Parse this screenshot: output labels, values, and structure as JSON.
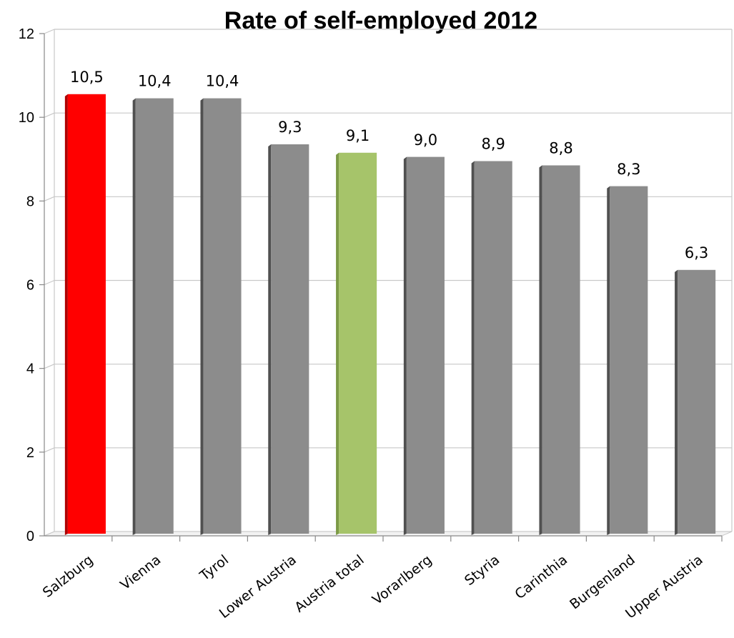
{
  "chart_data": {
    "type": "bar",
    "title": "Rate of self-employed 2012",
    "xlabel": "",
    "ylabel": "",
    "ylim": [
      0,
      12
    ],
    "yticks": [
      0,
      2,
      4,
      6,
      8,
      10,
      12
    ],
    "grid": true,
    "legend": "none",
    "categories": [
      "Salzburg",
      "Vienna",
      "Tyrol",
      "Lower Austria",
      "Austria total",
      "Vorarlberg",
      "Styria",
      "Carinthia",
      "Burgenland",
      "Upper Austria"
    ],
    "values": [
      10.5,
      10.4,
      10.4,
      9.3,
      9.1,
      9.0,
      8.9,
      8.8,
      8.3,
      6.3
    ],
    "data_labels": [
      "10,5",
      "10,4",
      "10,4",
      "9,3",
      "9,1",
      "9,0",
      "8,9",
      "8,8",
      "8,3",
      "6,3"
    ],
    "colors": [
      "#ff0000",
      "#8c8c8c",
      "#8c8c8c",
      "#8c8c8c",
      "#a6c46a",
      "#8c8c8c",
      "#8c8c8c",
      "#8c8c8c",
      "#8c8c8c",
      "#8c8c8c"
    ],
    "side_colors": [
      "#b00000",
      "#505050",
      "#505050",
      "#505050",
      "#7c9a46",
      "#505050",
      "#505050",
      "#505050",
      "#505050",
      "#505050"
    ]
  }
}
